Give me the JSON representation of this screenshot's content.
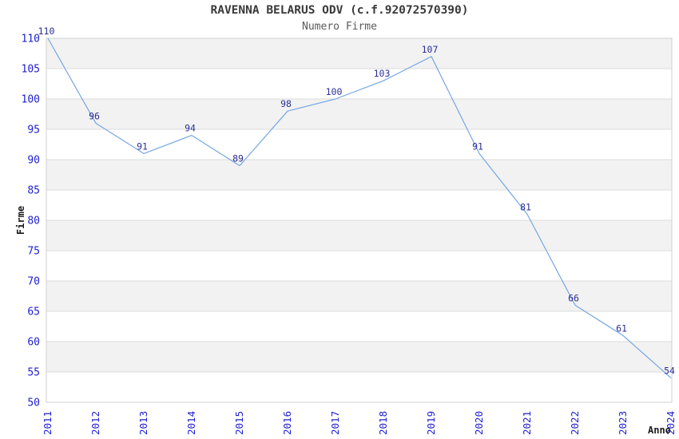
{
  "page": {
    "background": "#ffffff"
  },
  "chart_data": {
    "type": "line",
    "title": "RAVENNA BELARUS ODV (c.f.92072570390)",
    "subtitle": "Numero Firme",
    "xlabel": "Anno",
    "ylabel": "Firme",
    "x": [
      "2011",
      "2012",
      "2013",
      "2014",
      "2015",
      "2016",
      "2017",
      "2018",
      "2019",
      "2020",
      "2021",
      "2022",
      "2023",
      "2024"
    ],
    "values": [
      110,
      96,
      91,
      94,
      89,
      98,
      100,
      103,
      107,
      91,
      81,
      66,
      61,
      54
    ],
    "data_labels": [
      "110",
      "96",
      "91",
      "94",
      "89",
      "98",
      "100",
      "103",
      "107",
      "91",
      "81",
      "66",
      "61",
      "54"
    ],
    "ylim": [
      50,
      110
    ],
    "ytick_step": 5,
    "yticks": [
      "50",
      "55",
      "60",
      "65",
      "70",
      "75",
      "80",
      "85",
      "90",
      "95",
      "100",
      "105",
      "110"
    ],
    "grid": true,
    "banded_background": true,
    "legend_position": "none",
    "colors": {
      "line": "#74a6e3",
      "data_label": "#2e2e96",
      "tick_label": "#2020d0",
      "band_gray": "#f2f2f2",
      "band_white": "#ffffff",
      "gridline": "#dcdcdc",
      "plot_border": "#d0d0d0",
      "title": "#3a3a3a",
      "subtitle": "#5a5a5a",
      "axis_title": "#1a1a1a"
    }
  }
}
